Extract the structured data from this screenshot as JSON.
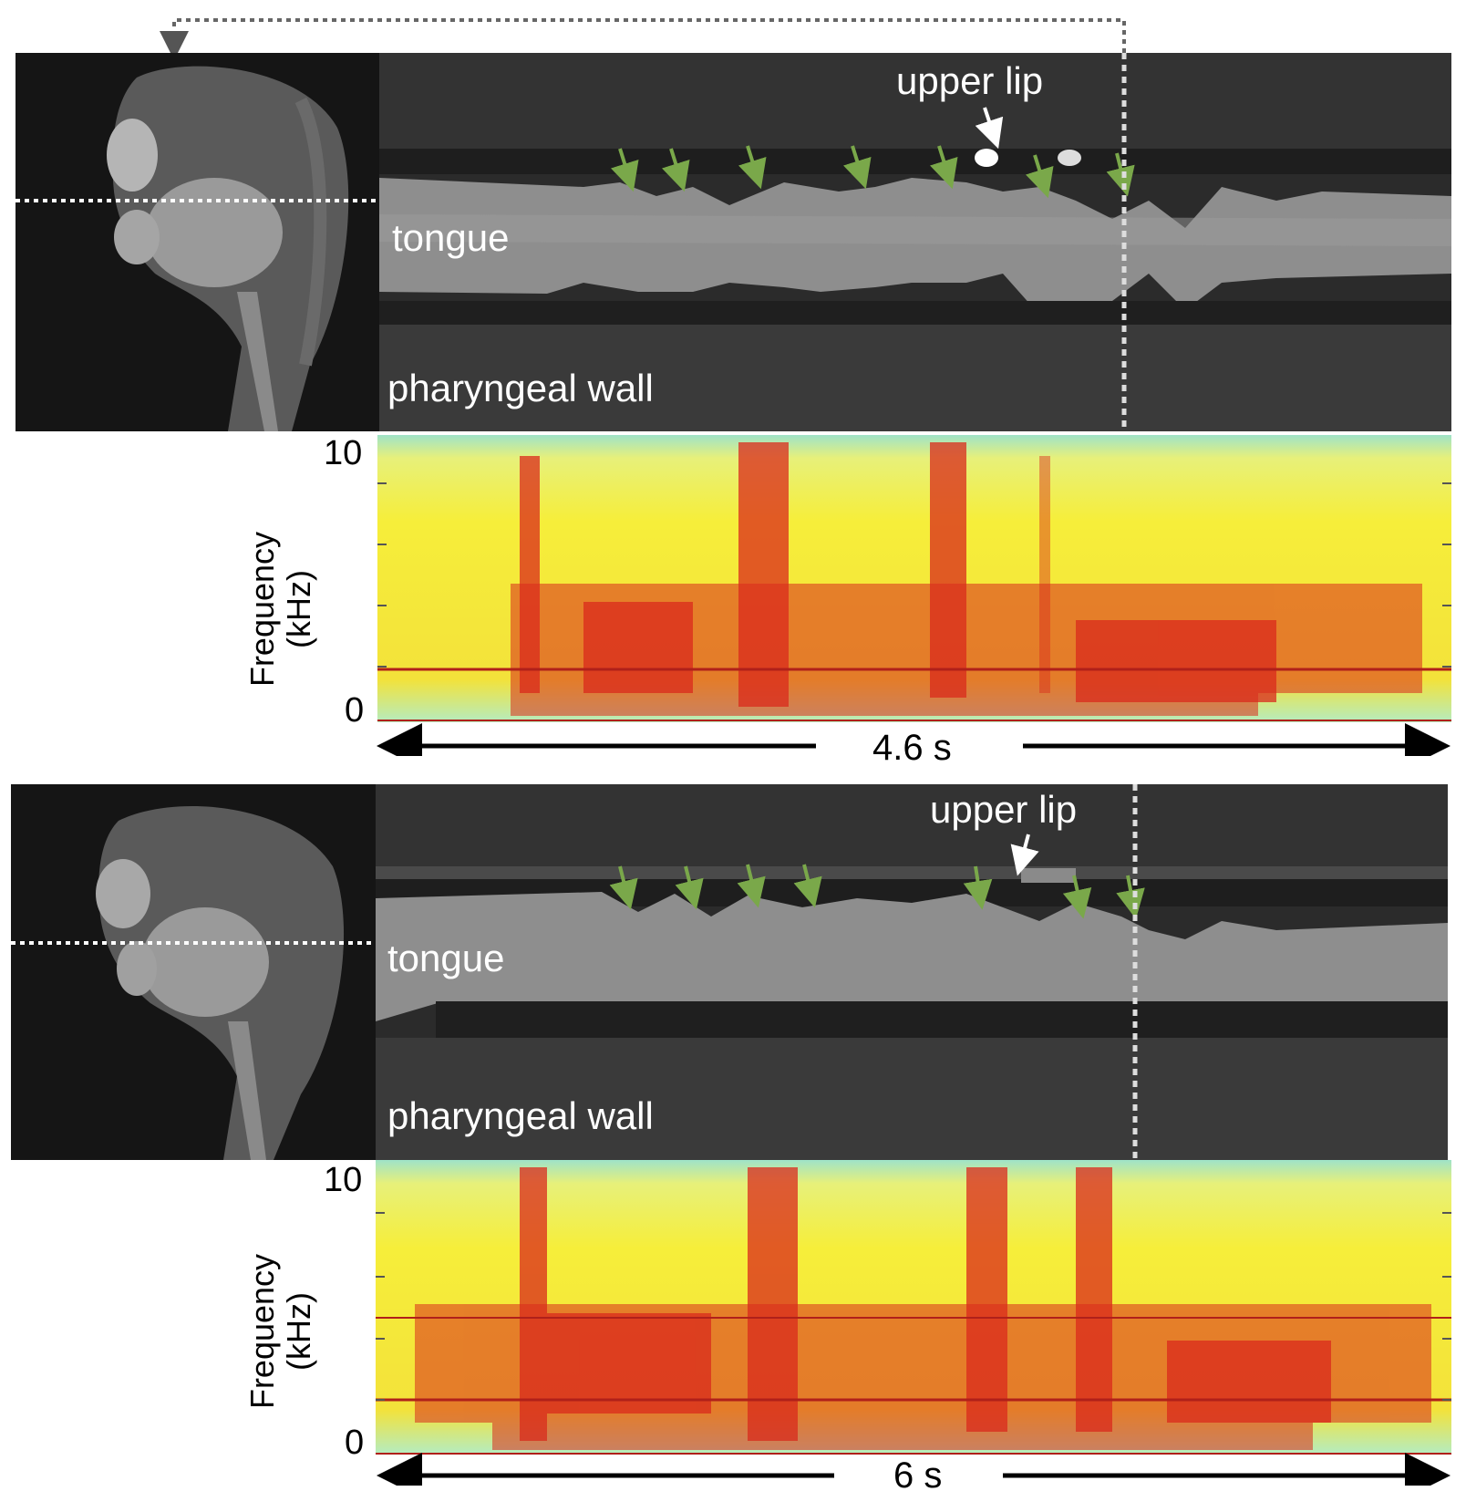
{
  "figure": {
    "panels": [
      {
        "id": "top",
        "labels": {
          "tongue": "tongue",
          "pharyngeal_wall": "pharyngeal wall",
          "upper_lip": "upper lip"
        },
        "spectrogram": {
          "ylabel_line1": "Frequency",
          "ylabel_line2": "(kHz)",
          "tick_top": "10",
          "tick_bottom": "0"
        },
        "duration": "4.6 s"
      },
      {
        "id": "bottom",
        "labels": {
          "tongue": "tongue",
          "pharyngeal_wall": "pharyngeal wall",
          "upper_lip": "upper lip"
        },
        "spectrogram": {
          "ylabel_line1": "Frequency",
          "ylabel_line2": "(kHz)",
          "tick_top": "10",
          "tick_bottom": "0"
        },
        "duration": "6 s"
      }
    ],
    "colors": {
      "mri_background": "#2a2a2a",
      "tongue_gray": "#8e8e8e",
      "arrow_green": "#7aa84a",
      "spectro_low": "#9fe3c8",
      "spectro_mid": "#f6ee3a",
      "spectro_high": "#d92a1c"
    }
  }
}
